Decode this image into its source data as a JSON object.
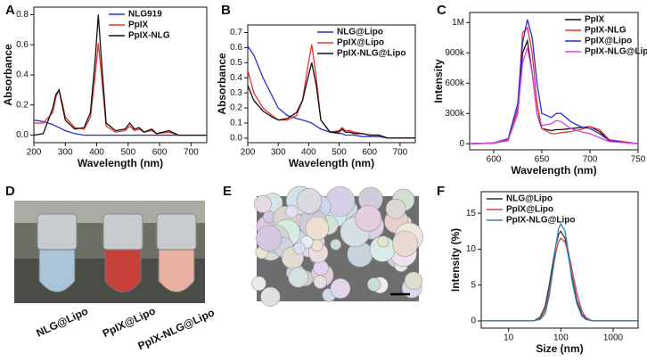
{
  "chart_data": [
    {
      "panel": "A",
      "type": "line",
      "x_label": "Wavelength (nm)",
      "y_label": "Absorbance",
      "xlim": [
        200,
        750
      ],
      "xticks": [
        200,
        300,
        400,
        500,
        600,
        700
      ],
      "ylim": [
        -0.05,
        0.85
      ],
      "yticks": [
        {
          "value": 0,
          "label": "0.0"
        },
        0.2,
        0.4,
        0.6,
        0.8
      ],
      "legend": "upper right",
      "x": [
        200,
        230,
        260,
        270,
        280,
        290,
        300,
        330,
        360,
        380,
        395,
        405,
        415,
        430,
        460,
        490,
        505,
        520,
        535,
        550,
        575,
        590,
        630,
        660,
        750
      ],
      "series": [
        {
          "name": "NLG919",
          "color": "#2b2bd6",
          "values": [
            0.1,
            0.09,
            0.07,
            0.06,
            0.05,
            0.04,
            0.03,
            0.01,
            0.0,
            0.0,
            0.0,
            0.0,
            0.0,
            0.0,
            0.0,
            0.0,
            0.0,
            0.0,
            0.0,
            0.0,
            0.0,
            0.0,
            0.0,
            0.0,
            0.0
          ]
        },
        {
          "name": "PpIX",
          "color": "#e8322f",
          "values": [
            0.08,
            0.08,
            0.15,
            0.25,
            0.3,
            0.22,
            0.12,
            0.05,
            0.04,
            0.12,
            0.4,
            0.61,
            0.4,
            0.06,
            0.02,
            0.03,
            0.06,
            0.03,
            0.04,
            0.02,
            0.03,
            0.01,
            0.02,
            0.0,
            0.0
          ]
        },
        {
          "name": "PpIX-NLG",
          "color": "#111111",
          "values": [
            0.0,
            0.01,
            0.18,
            0.27,
            0.3,
            0.2,
            0.1,
            0.04,
            0.05,
            0.15,
            0.5,
            0.8,
            0.5,
            0.08,
            0.03,
            0.04,
            0.08,
            0.04,
            0.05,
            0.02,
            0.04,
            0.01,
            0.03,
            0.0,
            0.0
          ]
        }
      ]
    },
    {
      "panel": "B",
      "type": "line",
      "x_label": "Wavelength (nm)",
      "y_label": "Absorbance",
      "xlim": [
        200,
        750
      ],
      "xticks": [
        200,
        300,
        400,
        500,
        600,
        700
      ],
      "ylim": [
        -0.03,
        0.75
      ],
      "yticks": [
        {
          "value": 0,
          "label": "0.0"
        },
        0.1,
        0.2,
        0.3,
        0.4,
        0.5,
        0.6,
        0.7
      ],
      "legend": "upper right",
      "x": [
        200,
        220,
        250,
        280,
        300,
        330,
        360,
        380,
        395,
        410,
        425,
        440,
        470,
        500,
        510,
        520,
        535,
        550,
        575,
        600,
        630,
        660,
        750
      ],
      "series": [
        {
          "name": "NLG@Lipo",
          "color": "#2b2bd6",
          "values": [
            0.61,
            0.55,
            0.4,
            0.28,
            0.2,
            0.15,
            0.13,
            0.12,
            0.11,
            0.1,
            0.08,
            0.06,
            0.04,
            0.03,
            0.03,
            0.02,
            0.02,
            0.02,
            0.01,
            0.01,
            0.01,
            0.0,
            0.0
          ]
        },
        {
          "name": "PpIX@Lipo",
          "color": "#e8322f",
          "values": [
            0.45,
            0.3,
            0.2,
            0.15,
            0.12,
            0.12,
            0.15,
            0.25,
            0.45,
            0.62,
            0.4,
            0.12,
            0.04,
            0.05,
            0.07,
            0.05,
            0.05,
            0.04,
            0.03,
            0.02,
            0.02,
            0.0,
            0.0
          ]
        },
        {
          "name": "PpIX-NLG@Lipo",
          "color": "#111111",
          "values": [
            0.35,
            0.25,
            0.18,
            0.14,
            0.12,
            0.13,
            0.17,
            0.25,
            0.38,
            0.5,
            0.35,
            0.12,
            0.04,
            0.04,
            0.06,
            0.04,
            0.04,
            0.03,
            0.03,
            0.02,
            0.02,
            0.0,
            0.0
          ]
        }
      ]
    },
    {
      "panel": "C",
      "type": "line",
      "x_label": "Wavelength (nm)",
      "y_label": "Intensity",
      "xlim": [
        575,
        750
      ],
      "xticks": [
        600,
        650,
        700,
        750
      ],
      "ylim": [
        -60000,
        1300000
      ],
      "yticks": [
        0,
        {
          "value": 300000,
          "label": "300k"
        },
        {
          "value": 600000,
          "label": "600k"
        },
        {
          "value": 900000,
          "label": "900k"
        },
        {
          "value": 1200000,
          "label": "1M"
        }
      ],
      "legend": "upper right",
      "x": [
        575,
        600,
        615,
        625,
        630,
        635,
        640,
        645,
        650,
        660,
        665,
        670,
        680,
        690,
        700,
        710,
        720,
        750
      ],
      "series": [
        {
          "name": "PpIX",
          "color": "#111111",
          "values": [
            0,
            5000,
            40000,
            300000,
            900000,
            1020000,
            700000,
            300000,
            150000,
            130000,
            140000,
            140000,
            150000,
            160000,
            170000,
            120000,
            30000,
            0
          ]
        },
        {
          "name": "PpIX-NLG",
          "color": "#e8322f",
          "values": [
            0,
            5000,
            30000,
            350000,
            1100000,
            1150000,
            900000,
            400000,
            150000,
            100000,
            100000,
            110000,
            120000,
            140000,
            170000,
            140000,
            40000,
            0
          ]
        },
        {
          "name": "PpIX@Lipo",
          "color": "#2b2bd6",
          "values": [
            0,
            10000,
            50000,
            400000,
            1000000,
            1230000,
            1050000,
            600000,
            300000,
            260000,
            300000,
            300000,
            220000,
            170000,
            150000,
            100000,
            30000,
            0
          ]
        },
        {
          "name": "PpIX-NLG@Lipo",
          "color": "#e040e0",
          "values": [
            0,
            8000,
            40000,
            300000,
            800000,
            950000,
            700000,
            300000,
            180000,
            200000,
            230000,
            220000,
            150000,
            120000,
            100000,
            60000,
            20000,
            0
          ]
        }
      ]
    },
    {
      "panel": "F",
      "type": "line",
      "x_label": "Size (nm)",
      "y_label": "Intensity (%)",
      "xscale": "log",
      "xlim": [
        3,
        3000
      ],
      "xticks": [
        10,
        100,
        1000
      ],
      "ylim": [
        -1,
        18
      ],
      "yticks": [
        0,
        5,
        10,
        15
      ],
      "legend": "upper left",
      "x": [
        3,
        30,
        40,
        50,
        60,
        70,
        80,
        90,
        100,
        120,
        140,
        160,
        200,
        250,
        300,
        400,
        3000
      ],
      "series": [
        {
          "name": "NLG@Lipo",
          "color": "#333333",
          "values": [
            0,
            0,
            0.5,
            2,
            5,
            8,
            10.5,
            12,
            12.5,
            11.5,
            9,
            6.5,
            3,
            1,
            0.3,
            0,
            0
          ]
        },
        {
          "name": "PpIX@Lipo",
          "color": "#d0404a",
          "values": [
            0,
            0,
            0.3,
            1.5,
            4,
            7,
            9.5,
            11,
            11.5,
            11,
            9.5,
            7.5,
            4,
            1.5,
            0.5,
            0,
            0
          ]
        },
        {
          "name": "PpIX-NLG@Lipo",
          "color": "#2f7fb8",
          "values": [
            0,
            0,
            0.2,
            1,
            3.5,
            7,
            10.5,
            12.8,
            13.5,
            12.5,
            9.5,
            6,
            2.5,
            0.7,
            0.2,
            0,
            0
          ]
        }
      ]
    }
  ],
  "photos": [
    {
      "panel": "D",
      "labels": [
        "NLG@Lipo",
        "PpIX@Lipo",
        "PpIX-NLG@Lipo"
      ]
    },
    {
      "panel": "E"
    }
  ]
}
